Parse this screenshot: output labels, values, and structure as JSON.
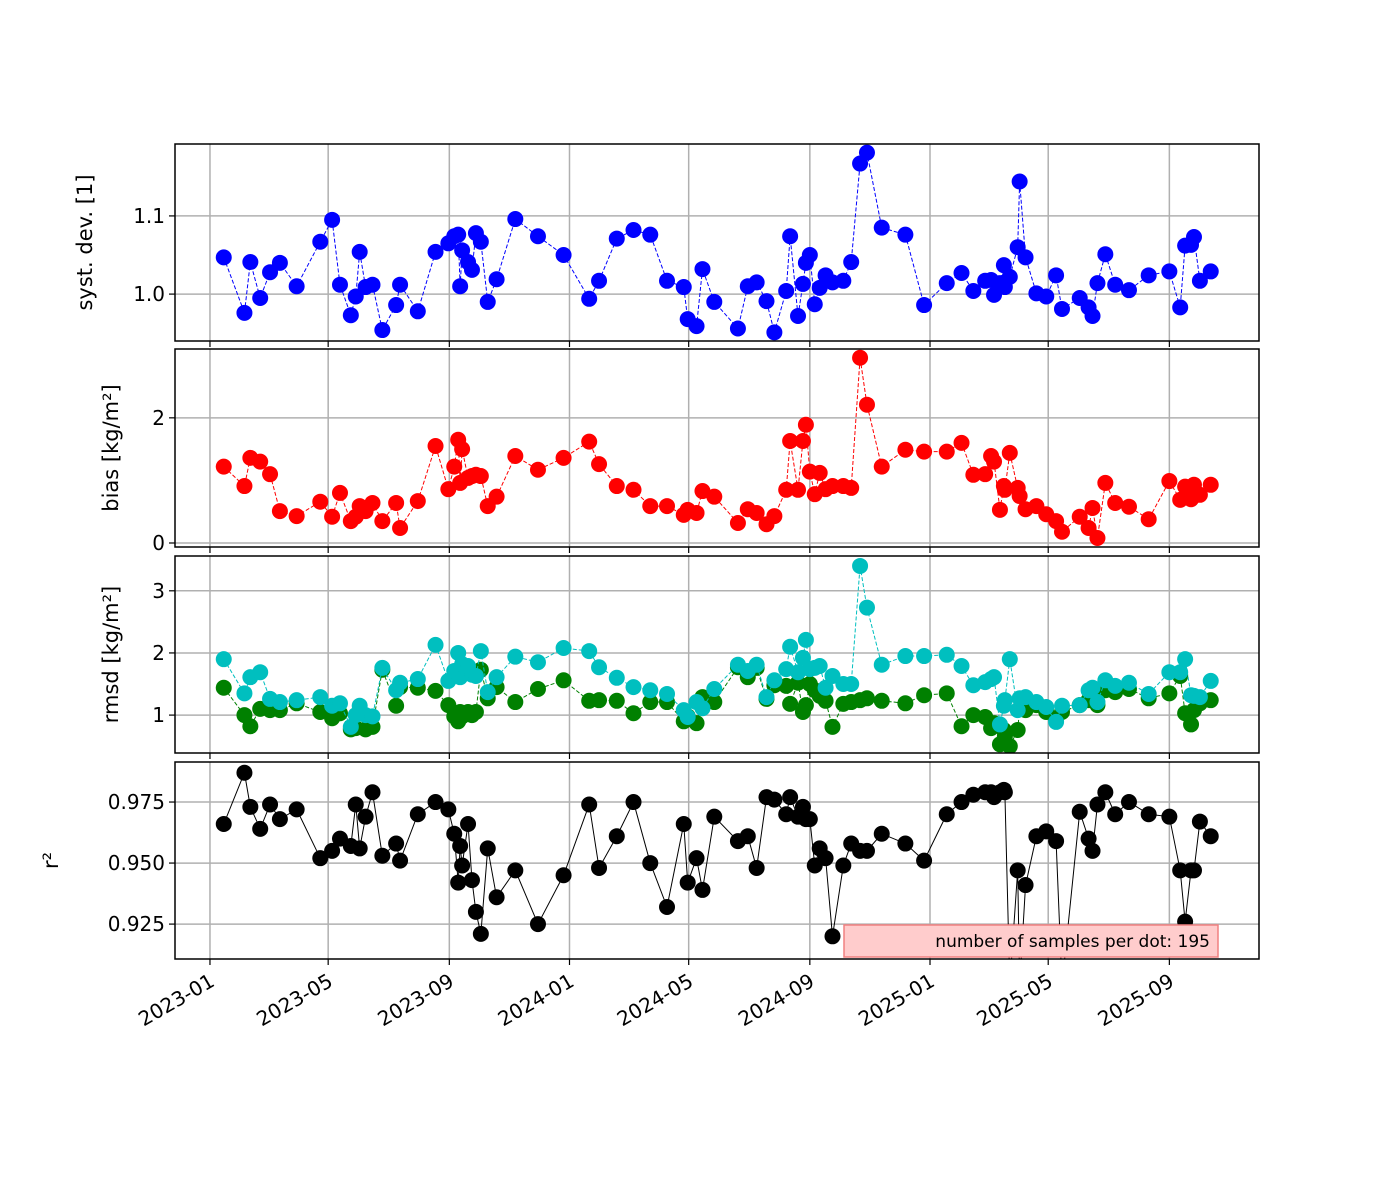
{
  "chart_data": {
    "type": "line",
    "x_unit": "days since 2023-01-01",
    "xlim": [
      -35.5,
      1065
    ],
    "x_ticks": [
      {
        "value": 0,
        "label": "2023-01"
      },
      {
        "value": 120,
        "label": "2023-05"
      },
      {
        "value": 243,
        "label": "2023-09"
      },
      {
        "value": 365,
        "label": "2024-01"
      },
      {
        "value": 486,
        "label": "2024-05"
      },
      {
        "value": 609,
        "label": "2024-09"
      },
      {
        "value": 731,
        "label": "2025-01"
      },
      {
        "value": 851,
        "label": "2025-05"
      },
      {
        "value": 974,
        "label": "2025-09"
      }
    ],
    "x": [
      14,
      35,
      41,
      51,
      61,
      71,
      88,
      112,
      124,
      132,
      143,
      148,
      152,
      158,
      165,
      175,
      189,
      193,
      211,
      229,
      242,
      248,
      252,
      254,
      256,
      262,
      266,
      270,
      275,
      282,
      291,
      310,
      333,
      359,
      385,
      395,
      413,
      430,
      447,
      464,
      481,
      485,
      494,
      500,
      512,
      536,
      546,
      555,
      565,
      573,
      585,
      589,
      597,
      602,
      605,
      609,
      614,
      619,
      625,
      632,
      643,
      651,
      660,
      667,
      682,
      706,
      725,
      748,
      763,
      775,
      787,
      793,
      796,
      802,
      806,
      807,
      812,
      820,
      822,
      828,
      839,
      849,
      859,
      865,
      883,
      892,
      896,
      901,
      909,
      919,
      933,
      953,
      974,
      985,
      990,
      996,
      999,
      1005,
      1016
    ],
    "grid": true,
    "annotation": "number of samples per dot: 195",
    "annotation_placement": "bottom-right of last panel",
    "panels": [
      {
        "ylabel": "syst. dev. [1]",
        "ylim": [
          0.94,
          1.192
        ],
        "y_ticks": [
          {
            "value": 1.0,
            "label": "1.0"
          },
          {
            "value": 1.1,
            "label": "1.1"
          }
        ],
        "series": [
          {
            "name": "syst. dev.",
            "color": "#0000ff",
            "line": "dashed",
            "values": [
              1.047,
              0.976,
              1.041,
              0.995,
              1.028,
              1.04,
              1.01,
              1.067,
              1.095,
              1.012,
              0.973,
              0.997,
              1.054,
              1.009,
              1.012,
              0.954,
              0.986,
              1.012,
              0.978,
              1.054,
              1.065,
              1.074,
              1.076,
              1.01,
              1.056,
              1.041,
              1.031,
              1.078,
              1.067,
              0.99,
              1.019,
              1.096,
              1.074,
              1.05,
              0.994,
              1.017,
              1.071,
              1.082,
              1.076,
              1.017,
              1.009,
              0.968,
              0.959,
              1.032,
              0.99,
              0.956,
              1.01,
              1.015,
              0.991,
              0.951,
              1.004,
              1.074,
              0.972,
              1.013,
              1.04,
              1.05,
              0.987,
              1.008,
              1.024,
              1.015,
              1.017,
              1.041,
              1.167,
              1.181,
              1.085,
              1.076,
              0.986,
              1.014,
              1.027,
              1.004,
              1.017,
              1.018,
              0.999,
              1.014,
              1.037,
              1.009,
              1.022,
              1.06,
              1.144,
              1.047,
              1.001,
              0.997,
              1.024,
              0.981,
              0.995,
              0.983,
              0.972,
              1.014,
              1.051,
              1.012,
              1.005,
              1.024,
              1.029,
              0.983,
              1.062,
              1.063,
              1.073,
              1.017,
              1.029
            ]
          }
        ]
      },
      {
        "ylabel": "bias [kg/m²]",
        "ylim": [
          -0.064,
          3.1
        ],
        "y_ticks": [
          {
            "value": 0,
            "label": "0"
          },
          {
            "value": 2,
            "label": "2"
          }
        ],
        "series": [
          {
            "name": "bias",
            "color": "#ff0000",
            "line": "dashed",
            "values": [
              1.22,
              0.91,
              1.36,
              1.3,
              1.1,
              0.51,
              0.43,
              0.66,
              0.42,
              0.8,
              0.35,
              0.42,
              0.59,
              0.51,
              0.64,
              0.35,
              0.64,
              0.24,
              0.67,
              1.55,
              0.86,
              1.22,
              1.65,
              0.96,
              1.5,
              1.04,
              1.07,
              1.09,
              1.07,
              0.59,
              0.74,
              1.39,
              1.17,
              1.36,
              1.62,
              1.26,
              0.91,
              0.85,
              0.59,
              0.59,
              0.45,
              0.53,
              0.48,
              0.83,
              0.74,
              0.32,
              0.54,
              0.48,
              0.3,
              0.43,
              0.85,
              1.63,
              0.85,
              1.63,
              1.89,
              1.14,
              0.78,
              1.12,
              0.86,
              0.91,
              0.91,
              0.88,
              2.96,
              2.21,
              1.22,
              1.49,
              1.46,
              1.46,
              1.6,
              1.09,
              1.1,
              1.39,
              1.3,
              0.53,
              0.91,
              0.85,
              1.44,
              0.88,
              0.75,
              0.54,
              0.59,
              0.46,
              0.35,
              0.18,
              0.42,
              0.24,
              0.56,
              0.08,
              0.96,
              0.64,
              0.58,
              0.38,
              0.99,
              0.69,
              0.9,
              0.7,
              0.93,
              0.77,
              0.93
            ]
          }
        ]
      },
      {
        "ylabel": "rmsd [kg/m²]",
        "ylim": [
          0.39,
          3.56
        ],
        "y_ticks": [
          {
            "value": 1,
            "label": "1"
          },
          {
            "value": 2,
            "label": "2"
          },
          {
            "value": 3,
            "label": "3"
          }
        ],
        "series": [
          {
            "name": "rmsd (green)",
            "color": "#008000",
            "line": "dashed",
            "values": [
              1.44,
              1.0,
              0.82,
              1.1,
              1.08,
              1.08,
              1.19,
              1.05,
              0.95,
              1.03,
              0.77,
              0.79,
              1.08,
              0.77,
              0.81,
              1.73,
              1.15,
              1.45,
              1.44,
              1.39,
              1.16,
              0.98,
              0.9,
              1.05,
              0.98,
              1.05,
              1.0,
              1.05,
              1.73,
              1.27,
              1.45,
              1.21,
              1.42,
              1.56,
              1.23,
              1.24,
              1.23,
              1.03,
              1.21,
              1.21,
              0.9,
              0.98,
              0.87,
              1.29,
              1.21,
              1.77,
              1.61,
              1.76,
              1.26,
              1.48,
              1.47,
              1.18,
              1.52,
              1.05,
              1.16,
              1.5,
              1.4,
              1.31,
              1.23,
              0.81,
              1.18,
              1.21,
              1.24,
              1.27,
              1.23,
              1.19,
              1.32,
              1.35,
              0.82,
              1.0,
              0.97,
              0.79,
              0.87,
              0.53,
              0.76,
              0.66,
              0.5,
              0.76,
              1.1,
              1.08,
              1.16,
              1.05,
              0.94,
              1.05,
              1.16,
              1.24,
              1.29,
              1.16,
              1.4,
              1.37,
              1.42,
              1.27,
              1.35,
              1.63,
              1.03,
              0.85,
              1.08,
              1.19,
              1.24
            ]
          },
          {
            "name": "rmsd (cyan)",
            "color": "#00bfbf",
            "line": "dashed",
            "values": [
              1.9,
              1.35,
              1.61,
              1.69,
              1.26,
              1.21,
              1.24,
              1.29,
              1.15,
              1.19,
              0.81,
              1.0,
              1.15,
              1.0,
              0.98,
              1.76,
              1.4,
              1.52,
              1.58,
              2.13,
              1.55,
              1.71,
              2.0,
              1.61,
              1.82,
              1.79,
              1.65,
              1.63,
              2.03,
              1.37,
              1.61,
              1.94,
              1.85,
              2.08,
              2.03,
              1.77,
              1.6,
              1.45,
              1.4,
              1.34,
              1.08,
              0.97,
              1.21,
              1.11,
              1.42,
              1.81,
              1.71,
              1.81,
              1.29,
              1.56,
              1.74,
              2.1,
              1.69,
              1.92,
              2.21,
              1.74,
              1.76,
              1.79,
              1.44,
              1.63,
              1.5,
              1.5,
              3.4,
              2.73,
              1.81,
              1.95,
              1.95,
              1.97,
              1.79,
              1.48,
              1.53,
              1.58,
              1.61,
              0.85,
              1.15,
              1.24,
              1.9,
              1.08,
              1.27,
              1.29,
              1.21,
              1.13,
              0.89,
              1.15,
              1.16,
              1.4,
              1.44,
              1.21,
              1.56,
              1.47,
              1.52,
              1.34,
              1.69,
              1.69,
              1.9,
              1.32,
              1.31,
              1.29,
              1.55
            ]
          }
        ]
      },
      {
        "ylabel": "r²",
        "ylim": [
          0.9107,
          0.9914
        ],
        "y_ticks": [
          {
            "value": 0.925,
            "label": "0.925"
          },
          {
            "value": 0.95,
            "label": "0.950"
          },
          {
            "value": 0.975,
            "label": "0.975"
          }
        ],
        "series": [
          {
            "name": "r²",
            "color": "#000000",
            "line": "solid",
            "values": [
              0.966,
              0.987,
              0.973,
              0.964,
              0.974,
              0.968,
              0.972,
              0.952,
              0.955,
              0.96,
              0.957,
              0.974,
              0.956,
              0.969,
              0.979,
              0.953,
              0.958,
              0.951,
              0.97,
              0.975,
              0.972,
              0.962,
              0.942,
              0.957,
              0.949,
              0.966,
              0.943,
              0.93,
              0.921,
              0.956,
              0.936,
              0.947,
              0.925,
              0.945,
              0.974,
              0.948,
              0.961,
              0.975,
              0.95,
              0.932,
              0.966,
              0.942,
              0.952,
              0.939,
              0.969,
              0.959,
              0.961,
              0.948,
              0.977,
              0.976,
              0.97,
              0.977,
              0.969,
              0.973,
              0.968,
              0.968,
              0.949,
              0.956,
              0.952,
              0.92,
              0.949,
              0.958,
              0.955,
              0.955,
              0.962,
              0.958,
              0.951,
              0.97,
              0.975,
              0.978,
              0.979,
              0.979,
              0.977,
              0.979,
              0.98,
              0.979,
              0.9,
              0.947,
              0.9,
              0.941,
              0.961,
              0.963,
              0.959,
              0.9,
              0.971,
              0.96,
              0.955,
              0.974,
              0.979,
              0.97,
              0.975,
              0.97,
              0.969,
              0.947,
              0.926,
              0.947,
              0.947,
              0.967,
              0.961
            ]
          }
        ]
      }
    ]
  }
}
